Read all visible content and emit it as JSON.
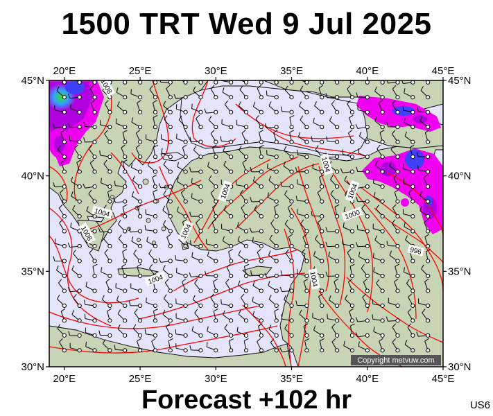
{
  "title": "1500 TRT Wed 9 Jul 2025",
  "forecast": "Forecast +102 hr",
  "model_code": "US6",
  "copyright": "Copyright metvuw.com",
  "map": {
    "lon_range": [
      19,
      45
    ],
    "lat_range": [
      30,
      45
    ],
    "lon_ticks": [
      {
        "value": 20,
        "label": "20°E"
      },
      {
        "value": 25,
        "label": "25°E"
      },
      {
        "value": 30,
        "label": "30°E"
      },
      {
        "value": 35,
        "label": "35°E"
      },
      {
        "value": 40,
        "label": "40°E"
      },
      {
        "value": 45,
        "label": "45°E"
      }
    ],
    "lat_ticks": [
      {
        "value": 45,
        "label": "45°N"
      },
      {
        "value": 40,
        "label": "40°N"
      },
      {
        "value": 35,
        "label": "35°N"
      },
      {
        "value": 30,
        "label": "30°N"
      }
    ],
    "isobar_labels": [
      {
        "text": "1004",
        "lon": 22.5,
        "lat": 38.1,
        "angle": 15
      },
      {
        "text": "1008",
        "lon": 21.5,
        "lat": 37.0,
        "angle": 60
      },
      {
        "text": "1004",
        "lon": 26.0,
        "lat": 34.6,
        "angle": -20
      },
      {
        "text": "1004",
        "lon": 30.6,
        "lat": 39.2,
        "angle": -70
      },
      {
        "text": "1004",
        "lon": 28.0,
        "lat": 37.1,
        "angle": -65
      },
      {
        "text": "1004",
        "lon": 37.3,
        "lat": 40.6,
        "angle": 75
      },
      {
        "text": "1004",
        "lon": 39.0,
        "lat": 39.2,
        "angle": -70
      },
      {
        "text": "1000",
        "lon": 39.0,
        "lat": 38.0,
        "angle": -20
      },
      {
        "text": "996",
        "lon": 43.2,
        "lat": 36.1,
        "angle": 15
      },
      {
        "text": "1004",
        "lon": 36.5,
        "lat": 34.6,
        "angle": 80
      },
      {
        "text": "1008",
        "lon": 22.8,
        "lat": 44.7,
        "angle": 60
      }
    ],
    "colors": {
      "sea": "#e4e4fa",
      "land": "#c7d4b6",
      "isobar": "#ff0000",
      "rain_magenta": "#f000f0",
      "rain_purple": "#b000e0",
      "rain_blue": "#4040ff",
      "rain_green": "#30d030",
      "coast": "#000000",
      "wind": "#000000"
    }
  }
}
